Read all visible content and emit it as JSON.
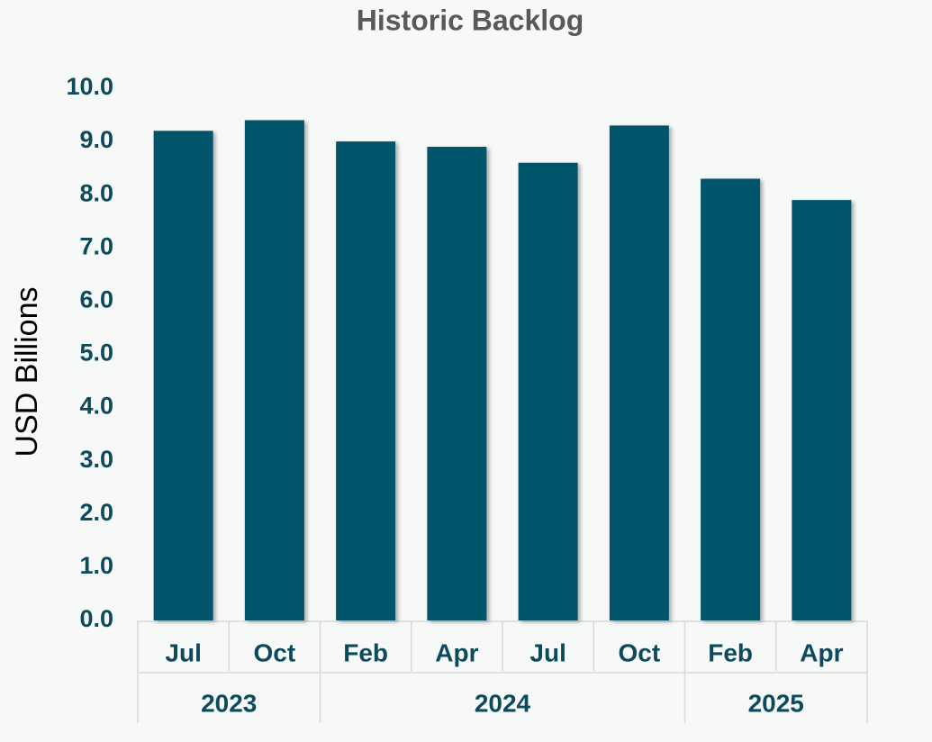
{
  "chart_data": {
    "type": "bar",
    "title": "Historic Backlog",
    "y_label": "USD Billions",
    "categories": [
      "Jul",
      "Oct",
      "Feb",
      "Apr",
      "Jul",
      "Oct",
      "Feb",
      "Apr"
    ],
    "groups": [
      {
        "name": "2023",
        "span": 2
      },
      {
        "name": "2024",
        "span": 4
      },
      {
        "name": "2025",
        "span": 2
      }
    ],
    "values": [
      9.2,
      9.4,
      9.0,
      8.9,
      8.6,
      9.3,
      8.3,
      7.9
    ],
    "color": "#00546b",
    "ylim": [
      0,
      10
    ],
    "yticks": [
      {
        "value": 0,
        "label": "0.0"
      },
      {
        "value": 1,
        "label": "1.0"
      },
      {
        "value": 2,
        "label": "2.0"
      },
      {
        "value": 3,
        "label": "3.0"
      },
      {
        "value": 4,
        "label": "4.0"
      },
      {
        "value": 5,
        "label": "5.0"
      },
      {
        "value": 6,
        "label": "6.0"
      },
      {
        "value": 7,
        "label": "7.0"
      },
      {
        "value": 8,
        "label": "8.0"
      },
      {
        "value": 9,
        "label": "9.0"
      },
      {
        "value": 10,
        "label": "10.0"
      }
    ],
    "grid": false
  }
}
